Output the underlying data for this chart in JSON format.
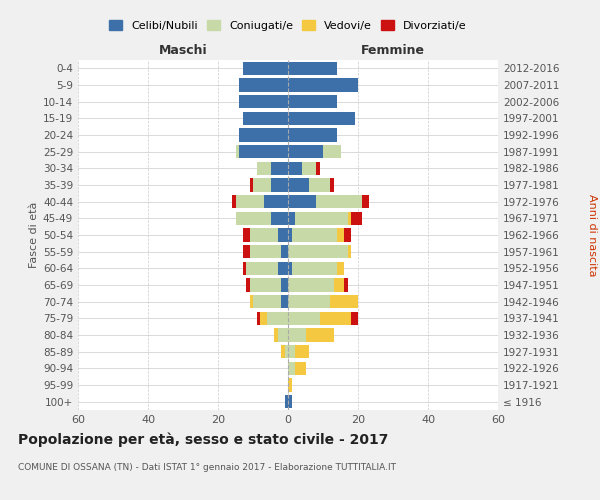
{
  "age_groups": [
    "100+",
    "95-99",
    "90-94",
    "85-89",
    "80-84",
    "75-79",
    "70-74",
    "65-69",
    "60-64",
    "55-59",
    "50-54",
    "45-49",
    "40-44",
    "35-39",
    "30-34",
    "25-29",
    "20-24",
    "15-19",
    "10-14",
    "5-9",
    "0-4"
  ],
  "birth_years": [
    "≤ 1916",
    "1917-1921",
    "1922-1926",
    "1927-1931",
    "1932-1936",
    "1937-1941",
    "1942-1946",
    "1947-1951",
    "1952-1956",
    "1957-1961",
    "1962-1966",
    "1967-1971",
    "1972-1976",
    "1977-1981",
    "1982-1986",
    "1987-1991",
    "1992-1996",
    "1997-2001",
    "2002-2006",
    "2007-2011",
    "2012-2016"
  ],
  "male": {
    "celibi": [
      1,
      0,
      0,
      0,
      0,
      0,
      2,
      2,
      3,
      2,
      3,
      5,
      7,
      5,
      5,
      14,
      14,
      13,
      14,
      14,
      13
    ],
    "coniugati": [
      0,
      0,
      0,
      1,
      3,
      6,
      8,
      9,
      9,
      9,
      8,
      10,
      8,
      5,
      4,
      1,
      0,
      0,
      0,
      0,
      0
    ],
    "vedovi": [
      0,
      0,
      0,
      1,
      1,
      2,
      1,
      0,
      0,
      0,
      0,
      0,
      0,
      0,
      0,
      0,
      0,
      0,
      0,
      0,
      0
    ],
    "divorziati": [
      0,
      0,
      0,
      0,
      0,
      1,
      0,
      1,
      1,
      2,
      2,
      0,
      1,
      1,
      0,
      0,
      0,
      0,
      0,
      0,
      0
    ]
  },
  "female": {
    "nubili": [
      1,
      0,
      0,
      0,
      0,
      0,
      0,
      0,
      1,
      0,
      1,
      2,
      8,
      6,
      4,
      10,
      14,
      19,
      14,
      20,
      14
    ],
    "coniugate": [
      0,
      0,
      2,
      2,
      5,
      9,
      12,
      13,
      13,
      17,
      13,
      15,
      13,
      6,
      4,
      5,
      0,
      0,
      0,
      0,
      0
    ],
    "vedove": [
      0,
      1,
      3,
      4,
      8,
      9,
      8,
      3,
      2,
      1,
      2,
      1,
      0,
      0,
      0,
      0,
      0,
      0,
      0,
      0,
      0
    ],
    "divorziate": [
      0,
      0,
      0,
      0,
      0,
      2,
      0,
      1,
      0,
      0,
      2,
      3,
      2,
      1,
      1,
      0,
      0,
      0,
      0,
      0,
      0
    ]
  },
  "colors": {
    "celibi": "#3d6fa8",
    "coniugati": "#c8d9a8",
    "vedovi": "#f5c842",
    "divorziati": "#cc1111"
  },
  "title": "Popolazione per età, sesso e stato civile - 2017",
  "subtitle": "COMUNE DI OSSANA (TN) - Dati ISTAT 1° gennaio 2017 - Elaborazione TUTTITALIA.IT",
  "xlabel_left": "Maschi",
  "xlabel_right": "Femmine",
  "ylabel_left": "Fasce di età",
  "ylabel_right": "Anni di nascita",
  "xlim": 60,
  "legend_labels": [
    "Celibi/Nubili",
    "Coniugati/e",
    "Vedovi/e",
    "Divorziati/e"
  ],
  "background_color": "#f0f0f0",
  "plot_bg": "#ffffff"
}
